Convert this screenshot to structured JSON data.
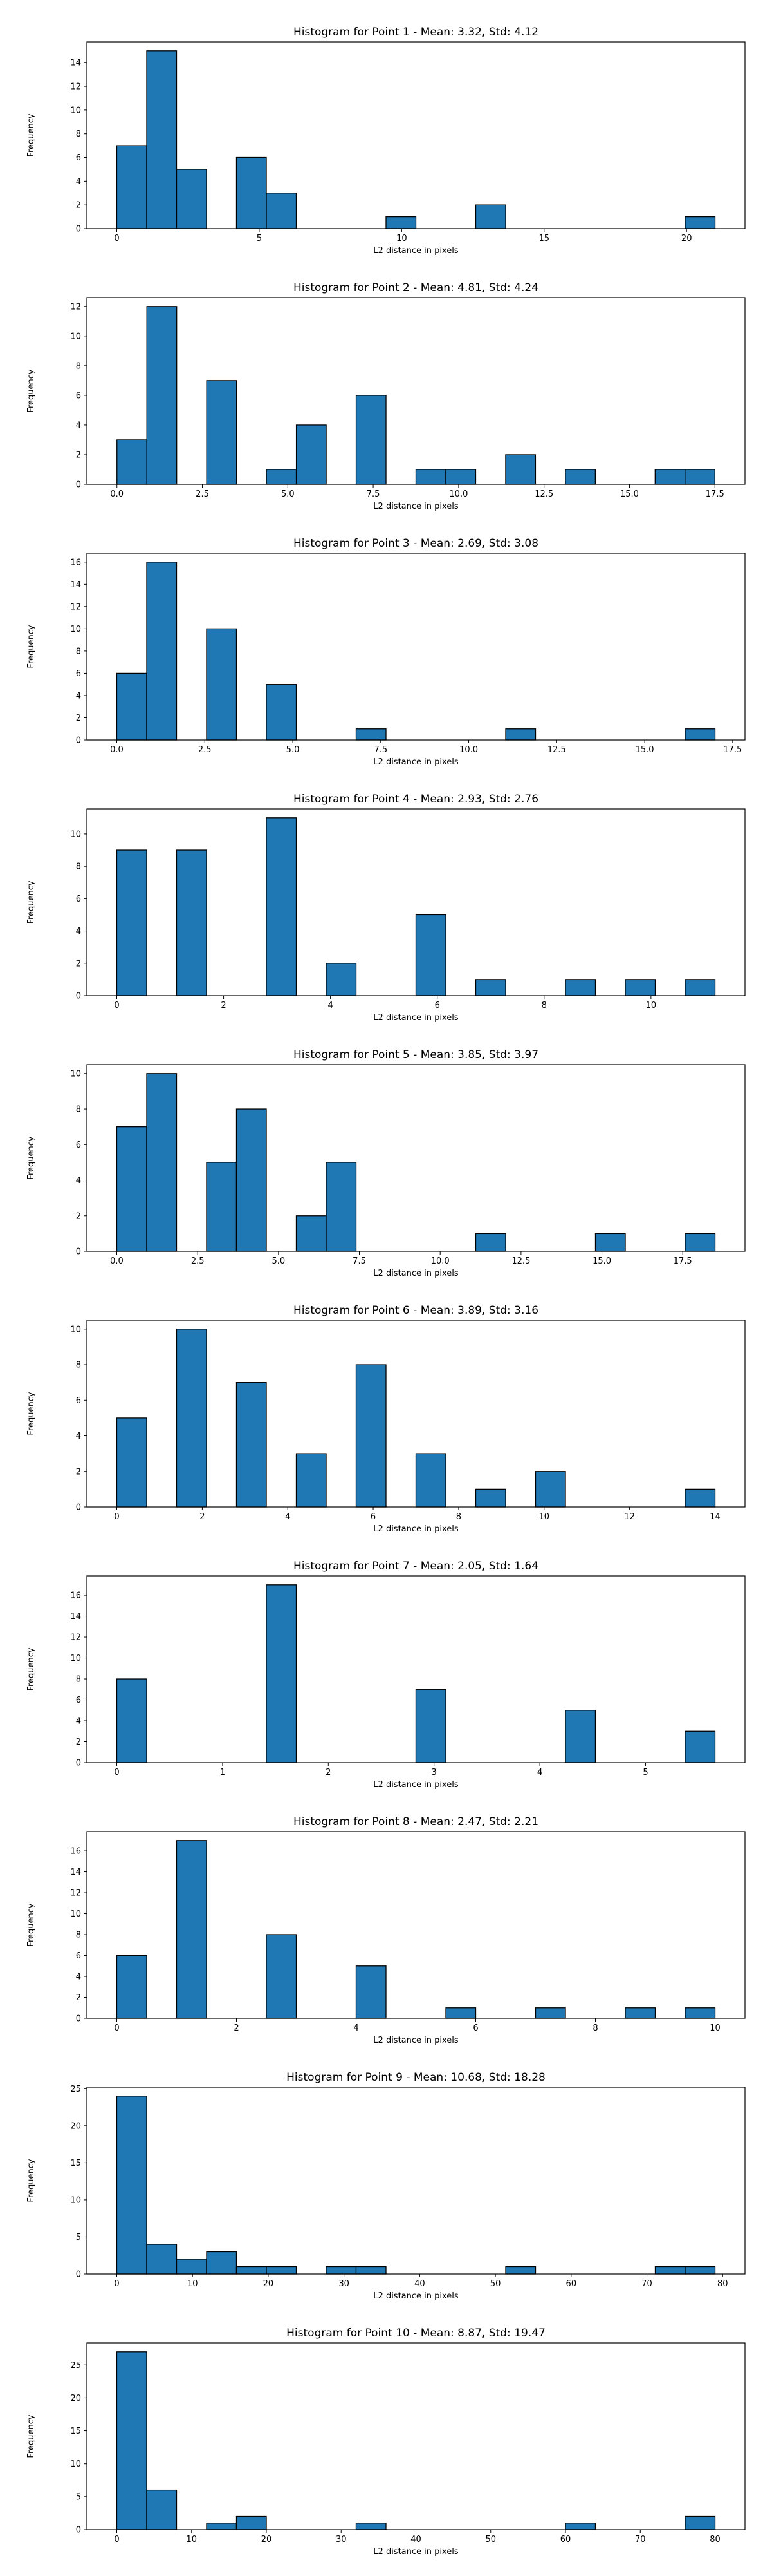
{
  "chart_data": [
    {
      "type": "bar",
      "title": "Histogram for Point 1 - Mean: 3.32, Std: 4.12",
      "xlabel": "L2 distance in pixels",
      "ylabel": "Frequency",
      "xlim": [
        -1.05,
        22.05
      ],
      "ylim": [
        0,
        15.75
      ],
      "xticks": [
        0,
        5,
        10,
        15,
        20
      ],
      "xtick_labels": [
        "0",
        "5",
        "10",
        "15",
        "20"
      ],
      "yticks": [
        0,
        2,
        4,
        6,
        8,
        10,
        12,
        14
      ],
      "ytick_labels": [
        "0",
        "2",
        "4",
        "6",
        "8",
        "10",
        "12",
        "14"
      ],
      "bin_edges": [
        0.0,
        1.05,
        2.1,
        3.15,
        4.2,
        5.25,
        6.3,
        7.35,
        8.4,
        9.45,
        10.5,
        11.55,
        12.6,
        13.65,
        14.7,
        15.75,
        16.8,
        17.85,
        18.9,
        19.95,
        21.0
      ],
      "counts": [
        7,
        15,
        5,
        0,
        6,
        3,
        0,
        0,
        0,
        1,
        0,
        0,
        2,
        0,
        0,
        0,
        0,
        0,
        0,
        1
      ],
      "color": "#1f77b4",
      "edgecolor": "#000000",
      "grid": false
    },
    {
      "type": "bar",
      "title": "Histogram for Point 2 - Mean: 4.81, Std: 4.24",
      "xlabel": "L2 distance in pixels",
      "ylabel": "Frequency",
      "xlim": [
        -0.88,
        18.38
      ],
      "ylim": [
        0,
        12.6
      ],
      "xticks": [
        0,
        2.5,
        5,
        7.5,
        10,
        12.5,
        15,
        17.5
      ],
      "xtick_labels": [
        "0.0",
        "2.5",
        "5.0",
        "7.5",
        "10.0",
        "12.5",
        "15.0",
        "17.5"
      ],
      "yticks": [
        0,
        2,
        4,
        6,
        8,
        10,
        12
      ],
      "ytick_labels": [
        "0",
        "2",
        "4",
        "6",
        "8",
        "10",
        "12"
      ],
      "bin_edges": [
        0.0,
        0.875,
        1.75,
        2.625,
        3.5,
        4.375,
        5.25,
        6.125,
        7.0,
        7.875,
        8.75,
        9.625,
        10.5,
        11.375,
        12.25,
        13.125,
        14.0,
        14.875,
        15.75,
        16.625,
        17.5
      ],
      "counts": [
        3,
        12,
        0,
        7,
        0,
        1,
        4,
        0,
        6,
        0,
        1,
        1,
        0,
        2,
        0,
        1,
        0,
        0,
        1,
        1
      ],
      "color": "#1f77b4",
      "edgecolor": "#000000",
      "grid": false
    },
    {
      "type": "bar",
      "title": "Histogram for Point 3 - Mean: 2.69, Std: 3.08",
      "xlabel": "L2 distance in pixels",
      "ylabel": "Frequency",
      "xlim": [
        -0.85,
        17.85
      ],
      "ylim": [
        0,
        16.8
      ],
      "xticks": [
        0,
        2.5,
        5,
        7.5,
        10,
        12.5,
        15,
        17.5
      ],
      "xtick_labels": [
        "0.0",
        "2.5",
        "5.0",
        "7.5",
        "10.0",
        "12.5",
        "15.0",
        "17.5"
      ],
      "yticks": [
        0,
        2,
        4,
        6,
        8,
        10,
        12,
        14,
        16
      ],
      "ytick_labels": [
        "0",
        "2",
        "4",
        "6",
        "8",
        "10",
        "12",
        "14",
        "16"
      ],
      "bin_edges": [
        0.0,
        0.85,
        1.7,
        2.55,
        3.4,
        4.25,
        5.1,
        5.95,
        6.8,
        7.65,
        8.5,
        9.35,
        10.2,
        11.05,
        11.9,
        12.75,
        13.6,
        14.45,
        15.3,
        16.15,
        17.0
      ],
      "counts": [
        6,
        16,
        0,
        10,
        0,
        5,
        0,
        0,
        1,
        0,
        0,
        0,
        0,
        1,
        0,
        0,
        0,
        0,
        0,
        1
      ],
      "color": "#1f77b4",
      "edgecolor": "#000000",
      "grid": false
    },
    {
      "type": "bar",
      "title": "Histogram for Point 4 - Mean: 2.93, Std: 2.76",
      "xlabel": "L2 distance in pixels",
      "ylabel": "Frequency",
      "xlim": [
        -0.56,
        11.76
      ],
      "ylim": [
        0,
        11.55
      ],
      "xticks": [
        0,
        2,
        4,
        6,
        8,
        10
      ],
      "xtick_labels": [
        "0",
        "2",
        "4",
        "6",
        "8",
        "10"
      ],
      "yticks": [
        0,
        2,
        4,
        6,
        8,
        10
      ],
      "ytick_labels": [
        "0",
        "2",
        "4",
        "6",
        "8",
        "10"
      ],
      "bin_edges": [
        0.0,
        0.56,
        1.12,
        1.68,
        2.24,
        2.8,
        3.36,
        3.92,
        4.48,
        5.04,
        5.6,
        6.16,
        6.72,
        7.28,
        7.84,
        8.4,
        8.96,
        9.52,
        10.08,
        10.64,
        11.2
      ],
      "counts": [
        9,
        0,
        9,
        0,
        0,
        11,
        0,
        2,
        0,
        0,
        5,
        0,
        1,
        0,
        0,
        1,
        0,
        1,
        0,
        1
      ],
      "color": "#1f77b4",
      "edgecolor": "#000000",
      "grid": false
    },
    {
      "type": "bar",
      "title": "Histogram for Point 5 - Mean: 3.85, Std: 3.97",
      "xlabel": "L2 distance in pixels",
      "ylabel": "Frequency",
      "xlim": [
        -0.925,
        19.425
      ],
      "ylim": [
        0,
        10.5
      ],
      "xticks": [
        0,
        2.5,
        5,
        7.5,
        10,
        12.5,
        15,
        17.5
      ],
      "xtick_labels": [
        "0.0",
        "2.5",
        "5.0",
        "7.5",
        "10.0",
        "12.5",
        "15.0",
        "17.5"
      ],
      "yticks": [
        0,
        2,
        4,
        6,
        8,
        10
      ],
      "ytick_labels": [
        "0",
        "2",
        "4",
        "6",
        "8",
        "10"
      ],
      "bin_edges": [
        0.0,
        0.925,
        1.85,
        2.775,
        3.7,
        4.625,
        5.55,
        6.475,
        7.4,
        8.325,
        9.25,
        10.175,
        11.1,
        12.025,
        12.95,
        13.875,
        14.8,
        15.725,
        16.65,
        17.575,
        18.5
      ],
      "counts": [
        7,
        10,
        0,
        5,
        8,
        0,
        2,
        5,
        0,
        0,
        0,
        0,
        1,
        0,
        0,
        0,
        1,
        0,
        0,
        1
      ],
      "color": "#1f77b4",
      "edgecolor": "#000000",
      "grid": false
    },
    {
      "type": "bar",
      "title": "Histogram for Point 6 - Mean: 3.89, Std: 3.16",
      "xlabel": "L2 distance in pixels",
      "ylabel": "Frequency",
      "xlim": [
        -0.7,
        14.7
      ],
      "ylim": [
        0,
        10.5
      ],
      "xticks": [
        0,
        2,
        4,
        6,
        8,
        10,
        12,
        14
      ],
      "xtick_labels": [
        "0",
        "2",
        "4",
        "6",
        "8",
        "10",
        "12",
        "14"
      ],
      "yticks": [
        0,
        2,
        4,
        6,
        8,
        10
      ],
      "ytick_labels": [
        "0",
        "2",
        "4",
        "6",
        "8",
        "10"
      ],
      "bin_edges": [
        0.0,
        0.7,
        1.4,
        2.1,
        2.8,
        3.5,
        4.2,
        4.9,
        5.6,
        6.3,
        7.0,
        7.7,
        8.4,
        9.1,
        9.8,
        10.5,
        11.2,
        11.9,
        12.6,
        13.3,
        14.0
      ],
      "counts": [
        5,
        0,
        10,
        0,
        7,
        0,
        3,
        0,
        8,
        0,
        3,
        0,
        1,
        0,
        2,
        0,
        0,
        0,
        0,
        1
      ],
      "color": "#1f77b4",
      "edgecolor": "#000000",
      "grid": false
    },
    {
      "type": "bar",
      "title": "Histogram for Point 7 - Mean: 2.05, Std: 1.64",
      "xlabel": "L2 distance in pixels",
      "ylabel": "Frequency",
      "xlim": [
        -0.283,
        5.94
      ],
      "ylim": [
        0,
        17.85
      ],
      "xticks": [
        0,
        1,
        2,
        3,
        4,
        5
      ],
      "xtick_labels": [
        "0",
        "1",
        "2",
        "3",
        "4",
        "5"
      ],
      "yticks": [
        0,
        2,
        4,
        6,
        8,
        10,
        12,
        14,
        16
      ],
      "ytick_labels": [
        "0",
        "2",
        "4",
        "6",
        "8",
        "10",
        "12",
        "14",
        "16"
      ],
      "bin_edges": [
        0.0,
        0.2828,
        0.5657,
        0.8485,
        1.1314,
        1.4142,
        1.6971,
        1.9799,
        2.2627,
        2.5456,
        2.8284,
        3.1113,
        3.3941,
        3.677,
        3.9598,
        4.2426,
        4.5255,
        4.8083,
        5.0912,
        5.374,
        5.6569
      ],
      "counts": [
        8,
        0,
        0,
        0,
        0,
        17,
        0,
        0,
        0,
        0,
        7,
        0,
        0,
        0,
        0,
        5,
        0,
        0,
        0,
        3
      ],
      "color": "#1f77b4",
      "edgecolor": "#000000",
      "grid": false
    },
    {
      "type": "bar",
      "title": "Histogram for Point 8 - Mean: 2.47, Std: 2.21",
      "xlabel": "L2 distance in pixels",
      "ylabel": "Frequency",
      "xlim": [
        -0.5,
        10.5
      ],
      "ylim": [
        0,
        17.85
      ],
      "xticks": [
        0,
        2,
        4,
        6,
        8,
        10
      ],
      "xtick_labels": [
        "0",
        "2",
        "4",
        "6",
        "8",
        "10"
      ],
      "yticks": [
        0,
        2,
        4,
        6,
        8,
        10,
        12,
        14,
        16
      ],
      "ytick_labels": [
        "0",
        "2",
        "4",
        "6",
        "8",
        "10",
        "12",
        "14",
        "16"
      ],
      "bin_edges": [
        0.0,
        0.5,
        1.0,
        1.5,
        2.0,
        2.5,
        3.0,
        3.5,
        4.0,
        4.5,
        5.0,
        5.5,
        6.0,
        6.5,
        7.0,
        7.5,
        8.0,
        8.5,
        9.0,
        9.5,
        10.0
      ],
      "counts": [
        6,
        0,
        17,
        0,
        0,
        8,
        0,
        0,
        5,
        0,
        0,
        1,
        0,
        0,
        1,
        0,
        0,
        1,
        0,
        1
      ],
      "color": "#1f77b4",
      "edgecolor": "#000000",
      "grid": false
    },
    {
      "type": "bar",
      "title": "Histogram for Point 9 - Mean: 10.68, Std: 18.28",
      "xlabel": "L2 distance in pixels",
      "ylabel": "Frequency",
      "xlim": [
        -3.95,
        82.95
      ],
      "ylim": [
        0,
        25.2
      ],
      "xticks": [
        0,
        10,
        20,
        30,
        40,
        50,
        60,
        70,
        80
      ],
      "xtick_labels": [
        "0",
        "10",
        "20",
        "30",
        "40",
        "50",
        "60",
        "70",
        "80"
      ],
      "yticks": [
        0,
        5,
        10,
        15,
        20,
        25
      ],
      "ytick_labels": [
        "0",
        "5",
        "10",
        "15",
        "20",
        "25"
      ],
      "bin_edges": [
        0.0,
        3.95,
        7.9,
        11.85,
        15.8,
        19.75,
        23.7,
        27.65,
        31.6,
        35.55,
        39.5,
        43.45,
        47.4,
        51.35,
        55.3,
        59.25,
        63.2,
        67.15,
        71.1,
        75.05,
        79.0
      ],
      "counts": [
        24,
        4,
        2,
        3,
        1,
        1,
        0,
        1,
        1,
        0,
        0,
        0,
        0,
        1,
        0,
        0,
        0,
        0,
        1,
        1
      ],
      "color": "#1f77b4",
      "edgecolor": "#000000",
      "grid": false
    },
    {
      "type": "bar",
      "title": "Histogram for Point 10 - Mean: 8.87, Std: 19.47",
      "xlabel": "L2 distance in pixels",
      "ylabel": "Frequency",
      "xlim": [
        -4.0,
        84.0
      ],
      "ylim": [
        0,
        28.35
      ],
      "xticks": [
        0,
        10,
        20,
        30,
        40,
        50,
        60,
        70,
        80
      ],
      "xtick_labels": [
        "0",
        "10",
        "20",
        "30",
        "40",
        "50",
        "60",
        "70",
        "80"
      ],
      "yticks": [
        0,
        5,
        10,
        15,
        20,
        25
      ],
      "ytick_labels": [
        "0",
        "5",
        "10",
        "15",
        "20",
        "25"
      ],
      "bin_edges": [
        0.0,
        4.0,
        8.0,
        12.0,
        16.0,
        20.0,
        24.0,
        28.0,
        32.0,
        36.0,
        40.0,
        44.0,
        48.0,
        52.0,
        56.0,
        60.0,
        64.0,
        68.0,
        72.0,
        76.0,
        80.0
      ],
      "counts": [
        27,
        6,
        0,
        1,
        2,
        0,
        0,
        0,
        1,
        0,
        0,
        0,
        0,
        0,
        0,
        1,
        0,
        0,
        0,
        2
      ],
      "color": "#1f77b4",
      "edgecolor": "#000000",
      "grid": false
    }
  ]
}
